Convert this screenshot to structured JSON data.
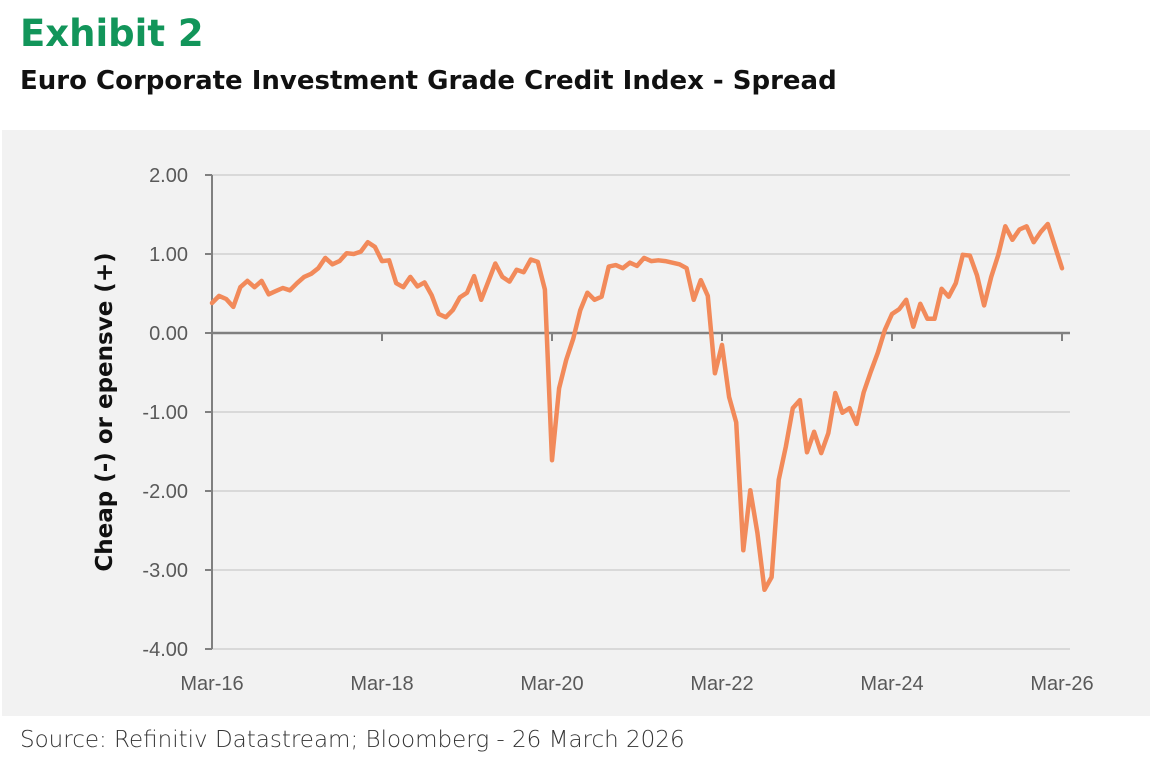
{
  "header": {
    "title": "Exhibit 2",
    "subtitle": "Euro Corporate Investment Grade Credit Index - Spread"
  },
  "source": "Source: Refinitiv Datastream; Bloomberg - 26 March 2026",
  "colors": {
    "title": "#12955a",
    "line": "#f28a5a",
    "plot_background": "#f2f2f2",
    "grid": "#d9d9d9",
    "axis": "#808080"
  },
  "chart_data": {
    "type": "line",
    "title": "Euro Corporate Investment Grade Credit Index - Spread",
    "xlabel": "",
    "ylabel": "Cheap (-) or epensve (+)",
    "ylim": [
      -4,
      2
    ],
    "yticks": [
      2,
      1,
      0,
      -1,
      -2,
      -3,
      -4
    ],
    "ytick_labels": [
      "2.00",
      "1.00",
      "0.00",
      "-1.00",
      "-2.00",
      "-3.00",
      "-4.00"
    ],
    "xticks": [
      "2016-03",
      "2018-03",
      "2020-03",
      "2022-03",
      "2024-03",
      "2026-03"
    ],
    "xtick_labels": [
      "Mar-16",
      "Mar-18",
      "Mar-20",
      "Mar-22",
      "Mar-24",
      "Mar-26"
    ],
    "grid": "horizontal",
    "legend": "none",
    "series": [
      {
        "color": "#f28a5a",
        "points": [
          [
            "2016-03",
            0.38
          ],
          [
            "2016-04",
            0.47
          ],
          [
            "2016-05",
            0.43
          ],
          [
            "2016-06",
            0.33
          ],
          [
            "2016-07",
            0.58
          ],
          [
            "2016-08",
            0.66
          ],
          [
            "2016-09",
            0.58
          ],
          [
            "2016-10",
            0.66
          ],
          [
            "2016-11",
            0.49
          ],
          [
            "2016-12",
            0.53
          ],
          [
            "2017-01",
            0.57
          ],
          [
            "2017-02",
            0.54
          ],
          [
            "2017-03",
            0.63
          ],
          [
            "2017-04",
            0.71
          ],
          [
            "2017-05",
            0.75
          ],
          [
            "2017-06",
            0.82
          ],
          [
            "2017-07",
            0.95
          ],
          [
            "2017-08",
            0.87
          ],
          [
            "2017-09",
            0.91
          ],
          [
            "2017-10",
            1.01
          ],
          [
            "2017-11",
            1.0
          ],
          [
            "2017-12",
            1.03
          ],
          [
            "2018-01",
            1.15
          ],
          [
            "2018-02",
            1.09
          ],
          [
            "2018-03",
            0.91
          ],
          [
            "2018-04",
            0.92
          ],
          [
            "2018-05",
            0.63
          ],
          [
            "2018-06",
            0.58
          ],
          [
            "2018-07",
            0.71
          ],
          [
            "2018-08",
            0.59
          ],
          [
            "2018-09",
            0.64
          ],
          [
            "2018-10",
            0.48
          ],
          [
            "2018-11",
            0.24
          ],
          [
            "2018-12",
            0.2
          ],
          [
            "2019-01",
            0.29
          ],
          [
            "2019-02",
            0.45
          ],
          [
            "2019-03",
            0.51
          ],
          [
            "2019-04",
            0.72
          ],
          [
            "2019-05",
            0.42
          ],
          [
            "2019-06",
            0.65
          ],
          [
            "2019-07",
            0.88
          ],
          [
            "2019-08",
            0.71
          ],
          [
            "2019-09",
            0.65
          ],
          [
            "2019-10",
            0.8
          ],
          [
            "2019-11",
            0.77
          ],
          [
            "2019-12",
            0.93
          ],
          [
            "2020-01",
            0.9
          ],
          [
            "2020-02",
            0.55
          ],
          [
            "2020-03",
            -1.61
          ],
          [
            "2020-04",
            -0.7
          ],
          [
            "2020-05",
            -0.34
          ],
          [
            "2020-06",
            -0.07
          ],
          [
            "2020-07",
            0.29
          ],
          [
            "2020-08",
            0.51
          ],
          [
            "2020-09",
            0.42
          ],
          [
            "2020-10",
            0.46
          ],
          [
            "2020-11",
            0.84
          ],
          [
            "2020-12",
            0.86
          ],
          [
            "2021-01",
            0.82
          ],
          [
            "2021-02",
            0.89
          ],
          [
            "2021-03",
            0.85
          ],
          [
            "2021-04",
            0.95
          ],
          [
            "2021-05",
            0.91
          ],
          [
            "2021-06",
            0.92
          ],
          [
            "2021-07",
            0.91
          ],
          [
            "2021-08",
            0.89
          ],
          [
            "2021-09",
            0.87
          ],
          [
            "2021-10",
            0.82
          ],
          [
            "2021-11",
            0.42
          ],
          [
            "2021-12",
            0.67
          ],
          [
            "2022-01",
            0.47
          ],
          [
            "2022-02",
            -0.51
          ],
          [
            "2022-03",
            -0.15
          ],
          [
            "2022-04",
            -0.81
          ],
          [
            "2022-05",
            -1.13
          ],
          [
            "2022-06",
            -2.75
          ],
          [
            "2022-07",
            -1.99
          ],
          [
            "2022-08",
            -2.53
          ],
          [
            "2022-09",
            -3.25
          ],
          [
            "2022-10",
            -3.09
          ],
          [
            "2022-11",
            -1.86
          ],
          [
            "2022-12",
            -1.44
          ],
          [
            "2023-01",
            -0.95
          ],
          [
            "2023-02",
            -0.85
          ],
          [
            "2023-03",
            -1.51
          ],
          [
            "2023-04",
            -1.25
          ],
          [
            "2023-05",
            -1.52
          ],
          [
            "2023-06",
            -1.27
          ],
          [
            "2023-07",
            -0.76
          ],
          [
            "2023-08",
            -1.01
          ],
          [
            "2023-09",
            -0.95
          ],
          [
            "2023-10",
            -1.15
          ],
          [
            "2023-11",
            -0.75
          ],
          [
            "2023-12",
            -0.49
          ],
          [
            "2024-01",
            -0.25
          ],
          [
            "2024-02",
            0.04
          ],
          [
            "2024-03",
            0.24
          ],
          [
            "2024-04",
            0.3
          ],
          [
            "2024-05",
            0.42
          ],
          [
            "2024-06",
            0.08
          ],
          [
            "2024-07",
            0.37
          ],
          [
            "2024-08",
            0.18
          ],
          [
            "2024-09",
            0.18
          ],
          [
            "2024-10",
            0.56
          ],
          [
            "2024-11",
            0.46
          ],
          [
            "2024-12",
            0.63
          ],
          [
            "2025-01",
            0.99
          ],
          [
            "2025-02",
            0.98
          ],
          [
            "2025-03",
            0.73
          ],
          [
            "2025-04",
            0.35
          ],
          [
            "2025-05",
            0.71
          ],
          [
            "2025-06",
            0.99
          ],
          [
            "2025-07",
            1.35
          ],
          [
            "2025-08",
            1.18
          ],
          [
            "2025-09",
            1.31
          ],
          [
            "2025-10",
            1.35
          ],
          [
            "2025-11",
            1.15
          ],
          [
            "2025-12",
            1.28
          ],
          [
            "2026-01",
            1.38
          ],
          [
            "2026-02",
            1.1
          ],
          [
            "2026-03",
            0.82
          ]
        ]
      }
    ]
  }
}
